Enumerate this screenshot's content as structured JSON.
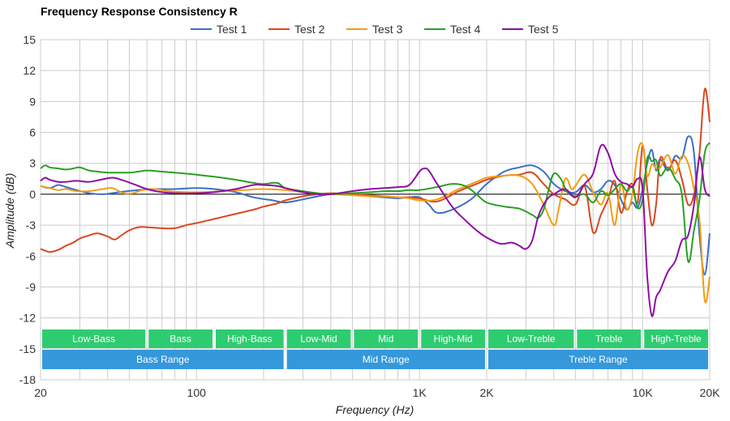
{
  "chart_data": {
    "type": "line",
    "title": "Frequency Response Consistency R",
    "xlabel": "Frequency (Hz)",
    "ylabel": "Amplitude (dB)",
    "x_scale": "log",
    "xlim": [
      20,
      20000
    ],
    "ylim": [
      -18,
      15
    ],
    "grid": true,
    "legend_position": "top",
    "x_tick_labels": [
      {
        "value": 20,
        "label": "20"
      },
      {
        "value": 100,
        "label": "100"
      },
      {
        "value": 1000,
        "label": "1K"
      },
      {
        "value": 2000,
        "label": "2K"
      },
      {
        "value": 10000,
        "label": "10K"
      },
      {
        "value": 20000,
        "label": "20K"
      }
    ],
    "y_ticks": [
      15,
      12,
      9,
      6,
      3,
      0,
      -3,
      -6,
      -9,
      -12,
      -15,
      -18
    ],
    "bands_top": [
      {
        "label": "Low-Bass",
        "from": 20,
        "to": 60
      },
      {
        "label": "Bass",
        "from": 60,
        "to": 120
      },
      {
        "label": "High-Bass",
        "from": 120,
        "to": 250
      },
      {
        "label": "Low-Mid",
        "from": 250,
        "to": 500
      },
      {
        "label": "Mid",
        "from": 500,
        "to": 1000
      },
      {
        "label": "High-Mid",
        "from": 1000,
        "to": 2000
      },
      {
        "label": "Low-Treble",
        "from": 2000,
        "to": 5000
      },
      {
        "label": "Treble",
        "from": 5000,
        "to": 10000
      },
      {
        "label": "High-Treble",
        "from": 10000,
        "to": 20000
      }
    ],
    "bands_bottom": [
      {
        "label": "Bass Range",
        "from": 20,
        "to": 250
      },
      {
        "label": "Mid Range",
        "from": 250,
        "to": 2000
      },
      {
        "label": "Treble Range",
        "from": 2000,
        "to": 20000
      }
    ],
    "colors": {
      "band_top": "#2ecc71",
      "band_bottom": "#3498db",
      "grid": "#cccccc",
      "zero_line": "#000000"
    },
    "series": [
      {
        "name": "Test 1",
        "color": "#3a6fc4",
        "x": [
          20,
          22,
          24,
          26,
          29,
          33,
          38,
          45,
          55,
          65,
          80,
          100,
          120,
          150,
          180,
          220,
          250,
          300,
          350,
          400,
          500,
          600,
          700,
          800,
          900,
          1000,
          1100,
          1200,
          1400,
          1700,
          2000,
          2400,
          2800,
          3200,
          3600,
          4000,
          4500,
          5000,
          5500,
          6000,
          6500,
          7000,
          7500,
          8000,
          8500,
          9000,
          9500,
          10000,
          10500,
          11000,
          11500,
          12000,
          13000,
          14000,
          15000,
          16000,
          17000,
          18000,
          19000,
          20000
        ],
        "y": [
          0.8,
          0.6,
          0.9,
          0.7,
          0.4,
          0.1,
          0.0,
          0.2,
          0.4,
          0.5,
          0.5,
          0.6,
          0.5,
          0.2,
          -0.3,
          -0.6,
          -0.8,
          -0.5,
          -0.2,
          0.0,
          0.0,
          -0.2,
          -0.3,
          -0.4,
          -0.3,
          -0.3,
          -1.0,
          -1.8,
          -1.5,
          -0.5,
          1.0,
          2.2,
          2.6,
          2.8,
          2.2,
          1.0,
          0.3,
          0.2,
          0.9,
          0.2,
          0.5,
          1.3,
          0.9,
          -0.5,
          -1.5,
          -0.8,
          -1.3,
          0.5,
          3.0,
          4.3,
          2.3,
          3.4,
          2.3,
          3.7,
          3.5,
          5.6,
          4.0,
          -4.0,
          -7.8,
          -3.8
        ]
      },
      {
        "name": "Test 2",
        "color": "#d9471f",
        "x": [
          20,
          22,
          24,
          26,
          28,
          30,
          33,
          36,
          40,
          43,
          46,
          50,
          55,
          60,
          70,
          80,
          90,
          100,
          120,
          150,
          180,
          200,
          230,
          250,
          300,
          350,
          400,
          500,
          600,
          700,
          800,
          900,
          1000,
          1200,
          1500,
          1800,
          2000,
          2400,
          2800,
          3200,
          3600,
          4000,
          4500,
          5000,
          5500,
          6000,
          6500,
          7000,
          7500,
          8000,
          8500,
          9000,
          9500,
          10000,
          10500,
          11000,
          11500,
          12000,
          13000,
          14000,
          15000,
          16000,
          17000,
          18000,
          19000,
          20000
        ],
        "y": [
          -5.3,
          -5.6,
          -5.4,
          -5.0,
          -4.7,
          -4.3,
          -4.0,
          -3.8,
          -4.1,
          -4.4,
          -4.0,
          -3.5,
          -3.2,
          -3.2,
          -3.3,
          -3.3,
          -3.0,
          -2.8,
          -2.4,
          -1.9,
          -1.5,
          -1.2,
          -0.9,
          -0.6,
          -0.2,
          0.0,
          0.1,
          0.0,
          -0.1,
          -0.2,
          -0.3,
          -0.3,
          -0.4,
          -0.7,
          0.3,
          1.0,
          1.4,
          1.8,
          1.9,
          2.1,
          1.0,
          0.0,
          -0.5,
          -1.0,
          0.8,
          -3.7,
          -2.0,
          -0.5,
          1.3,
          -1.8,
          0.2,
          1.0,
          -0.8,
          4.7,
          0.5,
          -3.0,
          -1.0,
          3.5,
          2.4,
          3.3,
          1.5,
          -1.0,
          0.0,
          4.0,
          10.2,
          7.0
        ]
      },
      {
        "name": "Test 3",
        "color": "#f39c12",
        "x": [
          20,
          22,
          24,
          26,
          29,
          33,
          38,
          42,
          47,
          52,
          57,
          65,
          75,
          90,
          110,
          130,
          160,
          200,
          250,
          300,
          350,
          400,
          500,
          600,
          700,
          800,
          900,
          1000,
          1200,
          1500,
          1800,
          2000,
          2400,
          2800,
          3200,
          3600,
          4000,
          4200,
          4500,
          4800,
          5000,
          5500,
          6000,
          6500,
          7000,
          7500,
          8000,
          8500,
          9000,
          9500,
          10000,
          10500,
          11000,
          11500,
          12000,
          13000,
          14000,
          15000,
          16000,
          17000,
          18000,
          19000,
          20000
        ],
        "y": [
          0.8,
          0.6,
          0.4,
          0.5,
          0.3,
          0.3,
          0.5,
          0.6,
          0.1,
          0.1,
          0.4,
          0.5,
          0.3,
          0.2,
          0.2,
          0.3,
          0.4,
          0.5,
          0.4,
          0.2,
          0.0,
          0.0,
          -0.1,
          -0.2,
          -0.2,
          -0.3,
          -0.4,
          -0.6,
          -0.5,
          0.5,
          1.2,
          1.6,
          1.8,
          1.8,
          1.0,
          -1.0,
          -3.0,
          -1.5,
          1.5,
          0.5,
          0.8,
          1.9,
          0.2,
          -1.0,
          0.1,
          -3.0,
          1.0,
          -1.5,
          0.0,
          4.0,
          4.8,
          1.8,
          2.9,
          2.5,
          2.6,
          3.8,
          2.0,
          3.7,
          3.0,
          0.5,
          -2.5,
          -10.3,
          -8.0
        ]
      },
      {
        "name": "Test 4",
        "color": "#28a020",
        "x": [
          20,
          21,
          22,
          24,
          26,
          28,
          30,
          33,
          36,
          40,
          45,
          50,
          55,
          60,
          70,
          80,
          90,
          100,
          120,
          140,
          160,
          180,
          200,
          230,
          250,
          300,
          350,
          400,
          500,
          600,
          700,
          800,
          900,
          1000,
          1200,
          1400,
          1600,
          1800,
          2000,
          2400,
          2800,
          3200,
          3400,
          3600,
          3800,
          4000,
          4300,
          4600,
          5000,
          5500,
          6000,
          6500,
          7000,
          7500,
          8000,
          8500,
          9000,
          9500,
          10000,
          10500,
          11000,
          11500,
          12000,
          13000,
          14000,
          15000,
          16000,
          17000,
          18000,
          19000,
          20000
        ],
        "y": [
          2.5,
          2.8,
          2.6,
          2.5,
          2.4,
          2.5,
          2.6,
          2.3,
          2.2,
          2.1,
          2.1,
          2.1,
          2.2,
          2.3,
          2.2,
          2.1,
          2.0,
          1.9,
          1.7,
          1.5,
          1.3,
          1.1,
          1.0,
          1.1,
          0.6,
          0.3,
          0.1,
          0.0,
          0.1,
          0.2,
          0.3,
          0.3,
          0.4,
          0.4,
          0.7,
          1.0,
          0.8,
          0.0,
          -0.8,
          -1.2,
          -1.4,
          -2.0,
          -2.3,
          -1.5,
          0.5,
          2.0,
          1.5,
          0.2,
          -0.2,
          0.0,
          -0.8,
          0.3,
          -0.1,
          0.5,
          1.0,
          0.3,
          0.7,
          -1.3,
          -0.5,
          3.5,
          3.2,
          3.3,
          1.8,
          2.6,
          1.5,
          0.0,
          -6.5,
          -3.5,
          -0.5,
          4.0,
          5.0
        ]
      },
      {
        "name": "Test 5",
        "color": "#8e0ea3",
        "x": [
          20,
          21,
          22,
          24,
          26,
          29,
          33,
          37,
          42,
          46,
          52,
          60,
          70,
          80,
          100,
          120,
          150,
          180,
          200,
          230,
          250,
          300,
          350,
          400,
          500,
          600,
          700,
          800,
          900,
          1000,
          1050,
          1100,
          1200,
          1400,
          1600,
          1800,
          2000,
          2300,
          2600,
          2800,
          3000,
          3200,
          3400,
          3600,
          3800,
          4000,
          4500,
          5000,
          5500,
          6000,
          6500,
          7000,
          7500,
          8000,
          8500,
          9000,
          9500,
          10000,
          10500,
          11000,
          11500,
          12000,
          13000,
          14000,
          15000,
          16000,
          17000,
          18000,
          19000,
          20000
        ],
        "y": [
          1.3,
          1.6,
          1.4,
          1.2,
          1.2,
          1.3,
          1.2,
          1.4,
          1.6,
          1.4,
          1.0,
          0.5,
          0.2,
          0.1,
          0.1,
          0.2,
          0.5,
          0.9,
          0.9,
          0.8,
          0.6,
          0.2,
          0.0,
          0.0,
          0.3,
          0.5,
          0.6,
          0.7,
          0.9,
          2.2,
          2.5,
          2.3,
          1.0,
          -1.2,
          -2.5,
          -3.5,
          -4.2,
          -4.8,
          -4.7,
          -5.0,
          -5.3,
          -4.5,
          -2.2,
          -1.0,
          -0.3,
          0.0,
          0.5,
          -0.3,
          1.0,
          2.0,
          4.7,
          4.0,
          2.0,
          1.2,
          1.0,
          0.7,
          1.5,
          0.5,
          -8.0,
          -11.8,
          -10.0,
          -9.3,
          -7.5,
          -6.5,
          -4.5,
          -4.0,
          -1.0,
          3.6,
          0.5,
          -0.2
        ]
      }
    ]
  }
}
